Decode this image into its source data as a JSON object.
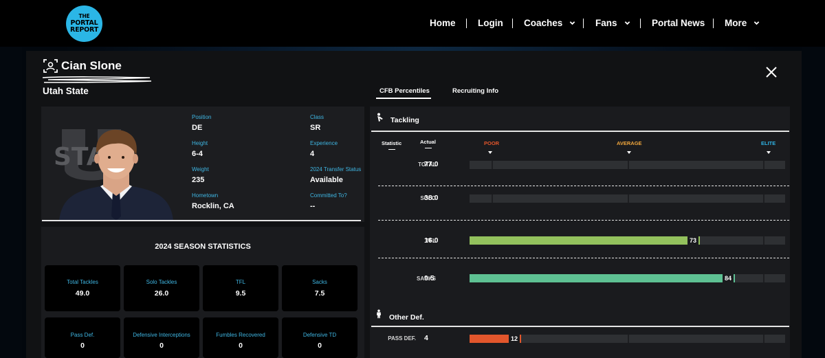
{
  "brand": {
    "logo_lines": [
      "THE",
      "PORTAL",
      "REPORT"
    ]
  },
  "nav": {
    "items": [
      {
        "label": "Home"
      },
      {
        "label": "Login"
      },
      {
        "label": "Coaches"
      },
      {
        "label": "Fans"
      },
      {
        "label": "Portal News"
      },
      {
        "label": "More"
      }
    ]
  },
  "player": {
    "name": "Cian Slone",
    "school": "Utah State",
    "school_logo_text": "STATE"
  },
  "tabs": [
    {
      "label": "CFB Percentiles",
      "active": true
    },
    {
      "label": "Recruiting Info",
      "active": false
    }
  ],
  "profile": {
    "fields": [
      {
        "label": "Position",
        "value": "DE"
      },
      {
        "label": "Class",
        "value": "SR"
      },
      {
        "label": "Height",
        "value": "6-4"
      },
      {
        "label": "Experience",
        "value": "4"
      },
      {
        "label": "Weight",
        "value": "235"
      },
      {
        "label": "2024 Transfer Status",
        "value": "Available"
      },
      {
        "label": "Hometown",
        "value": "Rocklin, CA"
      },
      {
        "label": "Committed To?",
        "value": "--"
      }
    ]
  },
  "season": {
    "title": "2024 SEASON STATISTICS",
    "stats": [
      {
        "label": "Total Tackles",
        "value": "49.0"
      },
      {
        "label": "Solo Tackles",
        "value": "26.0"
      },
      {
        "label": "TFL",
        "value": "9.5"
      },
      {
        "label": "Sacks",
        "value": "7.5"
      },
      {
        "label": "Pass Def.",
        "value": "0"
      },
      {
        "label": "Defensive Interceptions",
        "value": "0"
      },
      {
        "label": "Fumbles Recovered",
        "value": "0"
      },
      {
        "label": "Defensive TD",
        "value": "0"
      }
    ]
  },
  "percentiles": {
    "headers": {
      "statistic": "Statistic",
      "actual": "Actual"
    },
    "scale": {
      "poor": "POOR",
      "average": "AVERAGE",
      "elite": "ELITE"
    },
    "colors": {
      "poor": "#e2562c",
      "average": "#f0a63c",
      "elite": "#2fb4e6",
      "tfl": "#93c15d",
      "sacks": "#5ec193",
      "pass_def": "#e2562c"
    },
    "sections": [
      {
        "title": "Tackling",
        "rows": [
          {
            "stat": "TOTAL",
            "actual": "77.0",
            "percentile": null
          },
          {
            "stat": "SOLO",
            "actual": "38.0",
            "percentile": null
          },
          {
            "stat": "TFL",
            "actual": "16.0",
            "percentile": 73
          },
          {
            "stat": "SACKS",
            "actual": "9.5",
            "percentile": 84
          }
        ]
      },
      {
        "title": "Other Def.",
        "rows": [
          {
            "stat": "PASS DEF.",
            "actual": "4",
            "percentile": 12
          }
        ]
      }
    ]
  }
}
